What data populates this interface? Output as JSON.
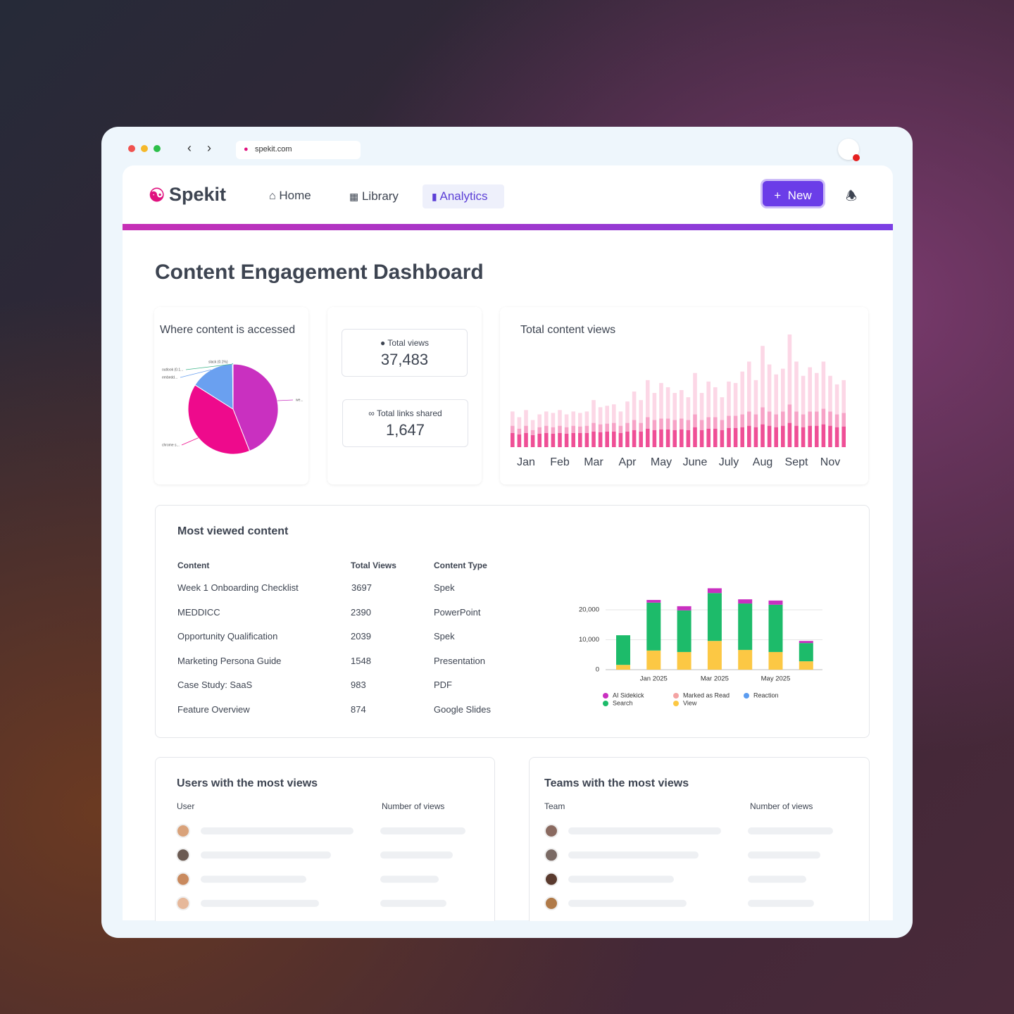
{
  "browser": {
    "url": "spekit.com"
  },
  "nav": {
    "logo": "Spekit",
    "items": [
      "Home",
      "Library",
      "Analytics"
    ],
    "new_button": "New"
  },
  "title": "Content Engagement Dashboard",
  "stats": [
    {
      "label": "Total views",
      "value": "37,483"
    },
    {
      "label": "Total links shared",
      "value": "1,647"
    }
  ],
  "chart_data": [
    {
      "type": "pie",
      "title": "Where content is accessed",
      "categories": [
        "we...",
        "chrome s...",
        "embedd...",
        "outlook (0.1...",
        "slack (0.1%)"
      ],
      "values": [
        44,
        40,
        15.8,
        0.1,
        0.1
      ],
      "colors": [
        "#c930c0",
        "#ee0a8c",
        "#6aa0f0",
        "#3fb68b",
        "#2ab3c0"
      ]
    },
    {
      "type": "bar",
      "stacked": true,
      "title": "Total content views",
      "categories": [
        null,
        null,
        "Jan",
        null,
        null,
        null,
        null,
        "Feb",
        null,
        null,
        null,
        null,
        "Mar",
        null,
        null,
        null,
        null,
        "Apr",
        null,
        null,
        null,
        null,
        "May",
        null,
        null,
        null,
        null,
        "June",
        null,
        null,
        null,
        null,
        "July",
        null,
        null,
        null,
        null,
        "Aug",
        null,
        null,
        null,
        null,
        "Sept",
        null,
        null,
        null,
        null,
        "Nov",
        null,
        null
      ],
      "series": [
        {
          "color": "#ef4f96",
          "values": [
            20,
            18,
            20,
            17,
            19,
            20,
            19,
            20,
            19,
            20,
            20,
            20,
            22,
            21,
            22,
            22,
            20,
            22,
            24,
            22,
            26,
            24,
            25,
            25,
            24,
            25,
            24,
            28,
            24,
            26,
            26,
            24,
            27,
            27,
            28,
            30,
            28,
            32,
            30,
            28,
            30,
            34,
            30,
            28,
            30,
            30,
            32,
            30,
            28,
            29
          ]
        },
        {
          "color": "#f7a3c7",
          "values": [
            10,
            8,
            10,
            7,
            9,
            10,
            9,
            10,
            9,
            10,
            9,
            10,
            12,
            11,
            11,
            12,
            10,
            12,
            14,
            12,
            16,
            14,
            15,
            15,
            14,
            15,
            14,
            18,
            14,
            16,
            16,
            14,
            17,
            17,
            18,
            20,
            18,
            24,
            20,
            18,
            20,
            26,
            20,
            18,
            20,
            20,
            22,
            20,
            18,
            19
          ]
        },
        {
          "color": "#fcd7e6",
          "values": [
            20,
            16,
            22,
            14,
            18,
            20,
            20,
            22,
            18,
            20,
            19,
            20,
            32,
            24,
            25,
            26,
            20,
            30,
            40,
            32,
            52,
            38,
            50,
            44,
            38,
            40,
            32,
            58,
            38,
            50,
            42,
            32,
            48,
            46,
            60,
            70,
            48,
            86,
            66,
            56,
            60,
            98,
            70,
            54,
            62,
            54,
            66,
            50,
            42,
            46
          ]
        }
      ]
    },
    {
      "type": "bar",
      "stacked": true,
      "categories": [
        null,
        "Jan 2025",
        null,
        "Mar 2025",
        null,
        "May 2025",
        null
      ],
      "series": [
        {
          "name": "AI Sidekick",
          "color": "#c930c0",
          "values": [
            0,
            900,
            1400,
            1600,
            1400,
            1400,
            700
          ]
        },
        {
          "name": "Marked as Read",
          "color": "#f4a3a3",
          "values": [
            0,
            0,
            0,
            0,
            0,
            0,
            0
          ]
        },
        {
          "name": "Reaction",
          "color": "#5b9cf0",
          "values": [
            0,
            0,
            0,
            0,
            0,
            0,
            0
          ]
        },
        {
          "name": "Search",
          "color": "#1dbb6a",
          "values": [
            9900,
            16000,
            13900,
            16000,
            15500,
            15800,
            6100
          ]
        },
        {
          "name": "View",
          "color": "#fcc844",
          "values": [
            1600,
            6400,
            5900,
            9600,
            6600,
            5900,
            2800
          ]
        }
      ],
      "ylim": [
        0,
        28000
      ],
      "yticks": [
        0,
        {
          "value": 10000,
          "label": "10,000"
        },
        {
          "value": 20000,
          "label": "20,000"
        }
      ],
      "grid": true,
      "legend": "bottom"
    }
  ],
  "most_viewed": {
    "title": "Most viewed content",
    "headers": [
      "Content",
      "Total Views",
      "Content Type"
    ],
    "rows": [
      [
        "Week 1 Onboarding Checklist",
        "3697",
        "Spek"
      ],
      [
        "MEDDICC",
        "2390",
        "PowerPoint"
      ],
      [
        "Opportunity Qualification",
        "2039",
        "Spek"
      ],
      [
        "Marketing Persona Guide",
        "1548",
        "Presentation"
      ],
      [
        "Case Study: SaaS",
        "983",
        "PDF"
      ],
      [
        "Feature Overview",
        "874",
        "Google Slides"
      ]
    ]
  },
  "users": {
    "title": "Users with the most views",
    "headers": [
      "User",
      "Number of views"
    ]
  },
  "teams": {
    "title": "Teams with the most views",
    "headers": [
      "Team",
      "Number of views"
    ]
  }
}
